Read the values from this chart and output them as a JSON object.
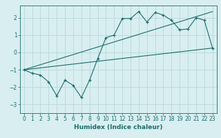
{
  "xlabel": "Humidex (Indice chaleur)",
  "ylabel": "",
  "background_color": "#d8eef0",
  "grid_color": "#b8d8da",
  "line_color": "#1a6b6b",
  "xlim": [
    -0.5,
    23.5
  ],
  "ylim": [
    -3.5,
    2.7
  ],
  "yticks": [
    -3,
    -2,
    -1,
    0,
    1,
    2
  ],
  "xticks": [
    0,
    1,
    2,
    3,
    4,
    5,
    6,
    7,
    8,
    9,
    10,
    11,
    12,
    13,
    14,
    15,
    16,
    17,
    18,
    19,
    20,
    21,
    22,
    23
  ],
  "series1_x": [
    0,
    1,
    2,
    3,
    4,
    5,
    6,
    7,
    8,
    9,
    10,
    11,
    12,
    13,
    14,
    15,
    16,
    17,
    18,
    19,
    20,
    21,
    22,
    23
  ],
  "series1_y": [
    -1.0,
    -1.2,
    -1.3,
    -1.7,
    -2.5,
    -1.6,
    -1.9,
    -2.6,
    -1.6,
    -0.35,
    0.85,
    1.0,
    1.95,
    1.95,
    2.35,
    1.75,
    2.3,
    2.15,
    1.85,
    1.3,
    1.35,
    2.0,
    1.85,
    0.25
  ],
  "series2_x": [
    0,
    23
  ],
  "series2_y": [
    -1.0,
    0.25
  ],
  "series3_x": [
    0,
    23
  ],
  "series3_y": [
    -1.0,
    2.35
  ]
}
